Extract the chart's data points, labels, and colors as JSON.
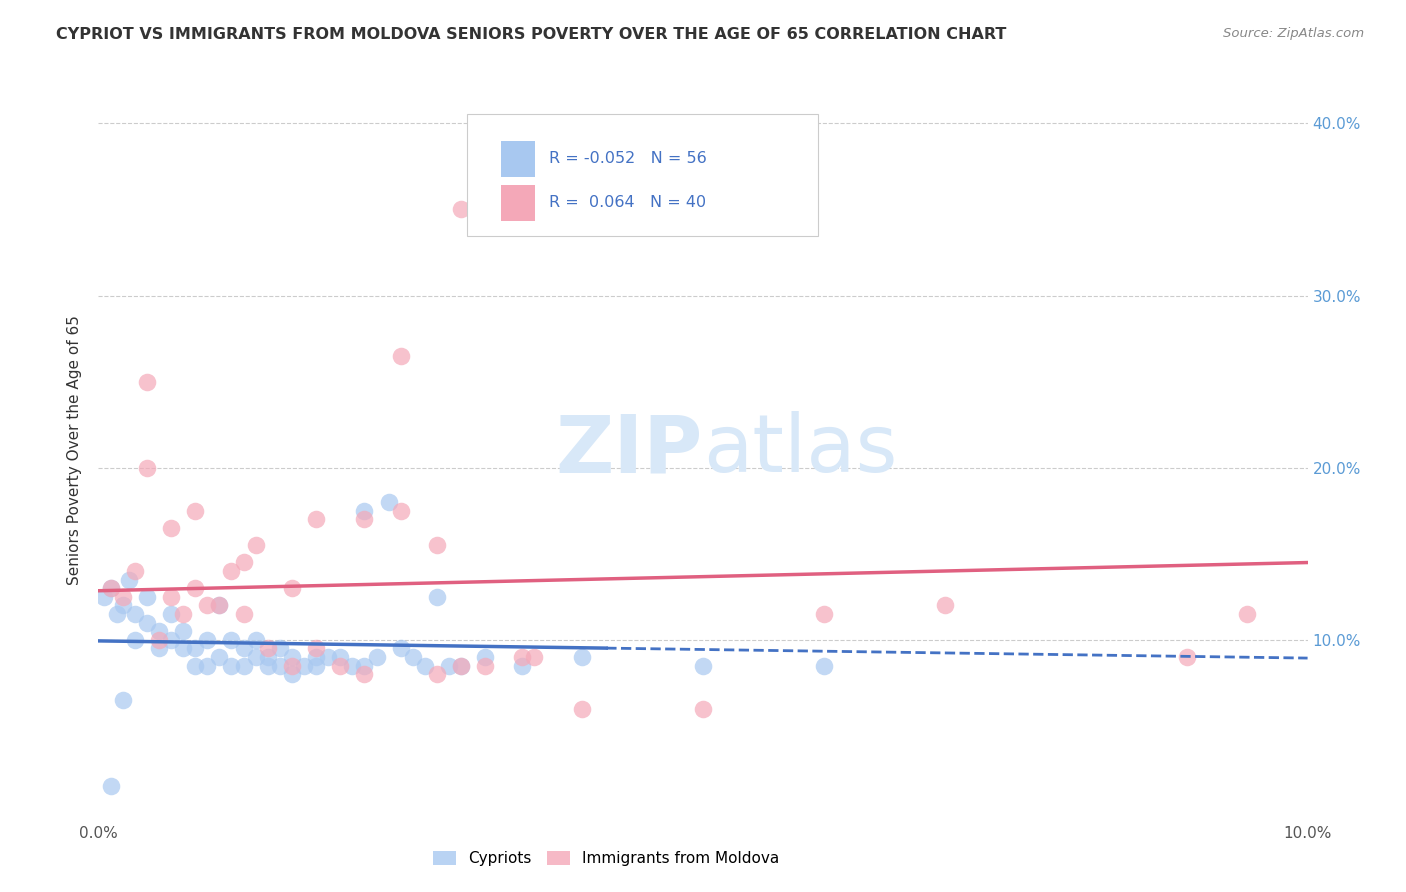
{
  "title": "CYPRIOT VS IMMIGRANTS FROM MOLDOVA SENIORS POVERTY OVER THE AGE OF 65 CORRELATION CHART",
  "source": "Source: ZipAtlas.com",
  "ylabel": "Seniors Poverty Over the Age of 65",
  "xlim": [
    0.0,
    0.1
  ],
  "ylim": [
    -0.005,
    0.425
  ],
  "cypriot_color": "#A8C8F0",
  "moldova_color": "#F4A8B8",
  "trend_cypriot_color": "#4472C4",
  "trend_moldova_color": "#E06080",
  "legend_text_color": "#4472C4",
  "watermark_color": "#D8E8F8",
  "grid_color": "#CCCCCC",
  "background_color": "#FFFFFF",
  "cypriot_x": [
    0.0005,
    0.001,
    0.0015,
    0.002,
    0.0025,
    0.003,
    0.003,
    0.004,
    0.004,
    0.005,
    0.005,
    0.006,
    0.006,
    0.007,
    0.007,
    0.008,
    0.008,
    0.009,
    0.009,
    0.01,
    0.01,
    0.011,
    0.011,
    0.012,
    0.012,
    0.013,
    0.013,
    0.014,
    0.014,
    0.015,
    0.015,
    0.016,
    0.016,
    0.017,
    0.018,
    0.018,
    0.019,
    0.02,
    0.021,
    0.022,
    0.022,
    0.023,
    0.024,
    0.025,
    0.026,
    0.027,
    0.028,
    0.029,
    0.03,
    0.032,
    0.035,
    0.04,
    0.05,
    0.06,
    0.001,
    0.002
  ],
  "cypriot_y": [
    0.125,
    0.13,
    0.115,
    0.12,
    0.135,
    0.115,
    0.1,
    0.11,
    0.125,
    0.105,
    0.095,
    0.1,
    0.115,
    0.095,
    0.105,
    0.085,
    0.095,
    0.1,
    0.085,
    0.09,
    0.12,
    0.085,
    0.1,
    0.095,
    0.085,
    0.1,
    0.09,
    0.085,
    0.09,
    0.095,
    0.085,
    0.09,
    0.08,
    0.085,
    0.09,
    0.085,
    0.09,
    0.09,
    0.085,
    0.085,
    0.175,
    0.09,
    0.18,
    0.095,
    0.09,
    0.085,
    0.125,
    0.085,
    0.085,
    0.09,
    0.085,
    0.09,
    0.085,
    0.085,
    0.015,
    0.065
  ],
  "moldova_x": [
    0.001,
    0.002,
    0.003,
    0.004,
    0.005,
    0.006,
    0.007,
    0.008,
    0.009,
    0.01,
    0.011,
    0.012,
    0.013,
    0.014,
    0.016,
    0.018,
    0.02,
    0.022,
    0.025,
    0.025,
    0.028,
    0.03,
    0.032,
    0.035,
    0.04,
    0.05,
    0.06,
    0.07,
    0.09,
    0.095,
    0.004,
    0.006,
    0.008,
    0.012,
    0.016,
    0.018,
    0.022,
    0.028,
    0.03,
    0.036
  ],
  "moldova_y": [
    0.13,
    0.125,
    0.14,
    0.25,
    0.1,
    0.125,
    0.115,
    0.13,
    0.12,
    0.12,
    0.14,
    0.115,
    0.155,
    0.095,
    0.13,
    0.17,
    0.085,
    0.17,
    0.265,
    0.175,
    0.155,
    0.35,
    0.085,
    0.09,
    0.06,
    0.06,
    0.115,
    0.12,
    0.09,
    0.115,
    0.2,
    0.165,
    0.175,
    0.145,
    0.085,
    0.095,
    0.08,
    0.08,
    0.085,
    0.09
  ],
  "cypriot_trend_x0": 0.0,
  "cypriot_trend_x1": 0.042,
  "cypriot_trend_x_dash_end": 0.1,
  "moldova_trend_x0": 0.0,
  "moldova_trend_x1": 0.1
}
